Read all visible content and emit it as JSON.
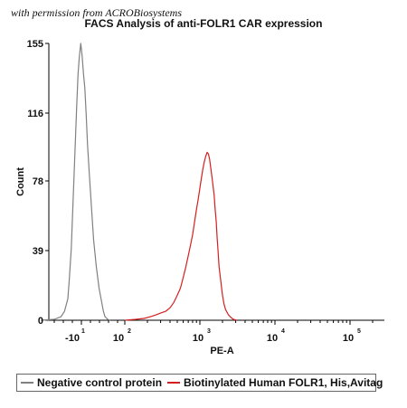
{
  "credit": "with permission from ACROBiosystems",
  "chart_data": {
    "type": "line",
    "title": "FACS Analysis of anti-FOLR1 CAR expression",
    "xlabel": "PE-A",
    "ylabel": "Count",
    "xscale": "biexponential",
    "yticks": [
      0,
      39,
      78,
      116,
      155
    ],
    "ylim": [
      0,
      155
    ],
    "xticks": [
      {
        "base": "-10",
        "exp": "1"
      },
      {
        "base": "10",
        "exp": "2"
      },
      {
        "base": "10",
        "exp": "3"
      },
      {
        "base": "10",
        "exp": "4"
      },
      {
        "base": "10",
        "exp": "5"
      }
    ],
    "grid": false,
    "legend_position": "bottom",
    "series": [
      {
        "name": "Negative control protein",
        "color": "#808080",
        "points": [
          [
            -60,
            0
          ],
          [
            -40,
            0.5
          ],
          [
            -30,
            2
          ],
          [
            -25,
            5
          ],
          [
            -20,
            12
          ],
          [
            -18,
            22
          ],
          [
            -15,
            40
          ],
          [
            -13,
            60
          ],
          [
            -11,
            80
          ],
          [
            -9,
            100
          ],
          [
            -7,
            120
          ],
          [
            -5,
            138
          ],
          [
            -3,
            148
          ],
          [
            -1,
            155
          ],
          [
            1,
            148
          ],
          [
            3,
            138
          ],
          [
            5,
            130
          ],
          [
            7,
            115
          ],
          [
            9,
            98
          ],
          [
            12,
            80
          ],
          [
            15,
            62
          ],
          [
            18,
            45
          ],
          [
            22,
            30
          ],
          [
            26,
            18
          ],
          [
            30,
            10
          ],
          [
            35,
            5
          ],
          [
            40,
            2
          ],
          [
            48,
            0.5
          ],
          [
            55,
            0
          ]
        ]
      },
      {
        "name": "Biotinylated Human FOLR1, His,Avitag",
        "color": "#d42020",
        "points": [
          [
            100,
            0
          ],
          [
            140,
            0.5
          ],
          [
            180,
            1
          ],
          [
            220,
            2
          ],
          [
            260,
            3
          ],
          [
            300,
            4
          ],
          [
            350,
            5
          ],
          [
            400,
            7
          ],
          [
            450,
            10
          ],
          [
            500,
            14
          ],
          [
            550,
            18
          ],
          [
            600,
            24
          ],
          [
            650,
            30
          ],
          [
            700,
            36
          ],
          [
            750,
            42
          ],
          [
            800,
            48
          ],
          [
            850,
            55
          ],
          [
            900,
            62
          ],
          [
            950,
            68
          ],
          [
            1000,
            74
          ],
          [
            1050,
            80
          ],
          [
            1100,
            85
          ],
          [
            1150,
            89
          ],
          [
            1200,
            92
          ],
          [
            1250,
            94
          ],
          [
            1300,
            93
          ],
          [
            1350,
            90
          ],
          [
            1400,
            85
          ],
          [
            1450,
            80
          ],
          [
            1500,
            75
          ],
          [
            1550,
            70
          ],
          [
            1600,
            62
          ],
          [
            1650,
            55
          ],
          [
            1700,
            46
          ],
          [
            1750,
            38
          ],
          [
            1800,
            30
          ],
          [
            1900,
            22
          ],
          [
            2000,
            14
          ],
          [
            2100,
            9
          ],
          [
            2200,
            6
          ],
          [
            2400,
            3
          ],
          [
            2600,
            1.5
          ],
          [
            2800,
            0.5
          ],
          [
            3100,
            0
          ]
        ]
      }
    ]
  }
}
